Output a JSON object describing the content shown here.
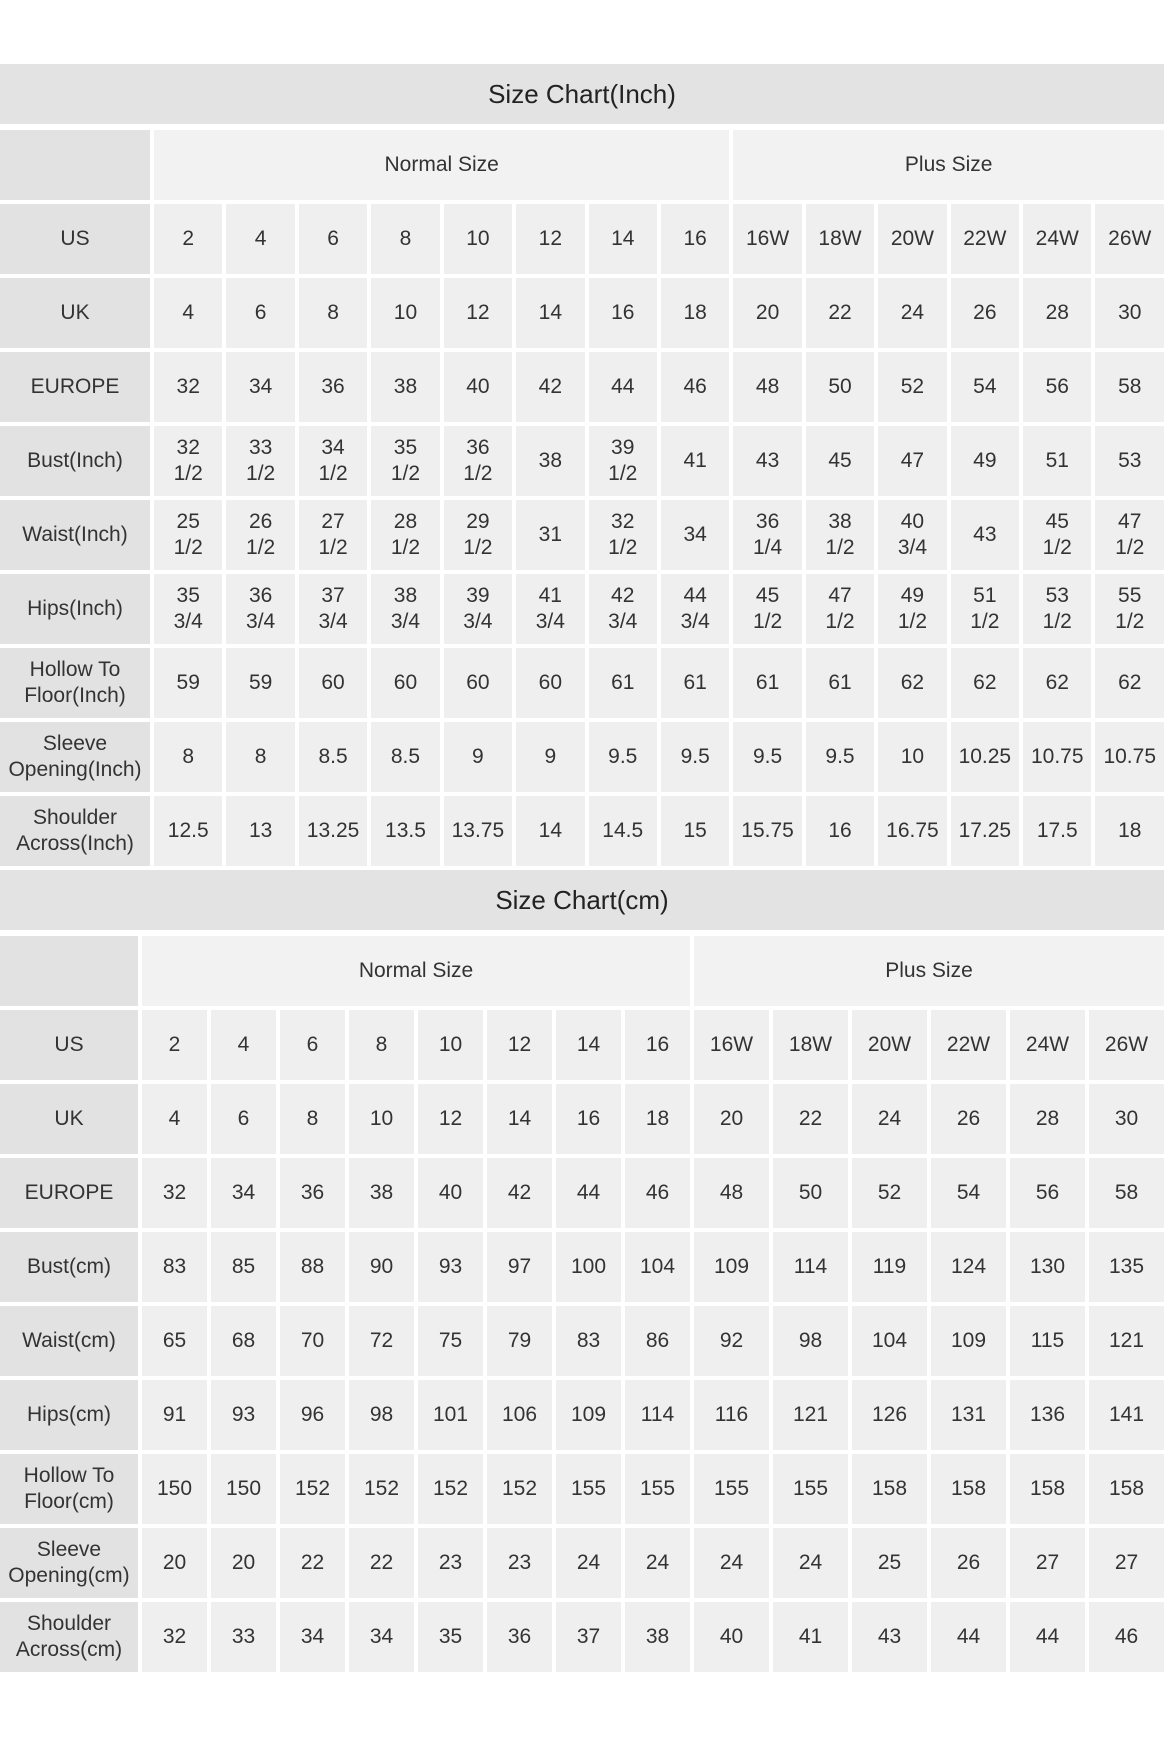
{
  "tables": [
    {
      "title": "Size Chart(Inch)",
      "groups": [
        "Normal Size",
        "Plus Size"
      ],
      "rows": [
        [
          "US",
          "2",
          "4",
          "6",
          "8",
          "10",
          "12",
          "14",
          "16",
          "16W",
          "18W",
          "20W",
          "22W",
          "24W",
          "26W"
        ],
        [
          "UK",
          "4",
          "6",
          "8",
          "10",
          "12",
          "14",
          "16",
          "18",
          "20",
          "22",
          "24",
          "26",
          "28",
          "30"
        ],
        [
          "EUROPE",
          "32",
          "34",
          "36",
          "38",
          "40",
          "42",
          "44",
          "46",
          "48",
          "50",
          "52",
          "54",
          "56",
          "58"
        ],
        [
          "Bust(Inch)",
          "32 1/2",
          "33 1/2",
          "34 1/2",
          "35 1/2",
          "36 1/2",
          "38",
          "39 1/2",
          "41",
          "43",
          "45",
          "47",
          "49",
          "51",
          "53"
        ],
        [
          "Waist(Inch)",
          "25 1/2",
          "26 1/2",
          "27 1/2",
          "28 1/2",
          "29 1/2",
          "31",
          "32 1/2",
          "34",
          "36 1/4",
          "38 1/2",
          "40 3/4",
          "43",
          "45 1/2",
          "47 1/2"
        ],
        [
          "Hips(Inch)",
          "35 3/4",
          "36 3/4",
          "37 3/4",
          "38 3/4",
          "39 3/4",
          "41 3/4",
          "42 3/4",
          "44 3/4",
          "45 1/2",
          "47 1/2",
          "49 1/2",
          "51 1/2",
          "53 1/2",
          "55 1/2"
        ],
        [
          "Hollow To Floor(Inch)",
          "59",
          "59",
          "60",
          "60",
          "60",
          "60",
          "61",
          "61",
          "61",
          "61",
          "62",
          "62",
          "62",
          "62"
        ],
        [
          "Sleeve Opening(Inch)",
          "8",
          "8",
          "8.5",
          "8.5",
          "9",
          "9",
          "9.5",
          "9.5",
          "9.5",
          "9.5",
          "10",
          "10.25",
          "10.75",
          "10.75"
        ],
        [
          "Shoulder Across(Inch)",
          "12.5",
          "13",
          "13.25",
          "13.5",
          "13.75",
          "14",
          "14.5",
          "15",
          "15.75",
          "16",
          "16.75",
          "17.25",
          "17.5",
          "18"
        ]
      ]
    },
    {
      "title": "Size Chart(cm)",
      "groups": [
        "Normal Size",
        "Plus Size"
      ],
      "rows": [
        [
          "US",
          "2",
          "4",
          "6",
          "8",
          "10",
          "12",
          "14",
          "16",
          "16W",
          "18W",
          "20W",
          "22W",
          "24W",
          "26W"
        ],
        [
          "UK",
          "4",
          "6",
          "8",
          "10",
          "12",
          "14",
          "16",
          "18",
          "20",
          "22",
          "24",
          "26",
          "28",
          "30"
        ],
        [
          "EUROPE",
          "32",
          "34",
          "36",
          "38",
          "40",
          "42",
          "44",
          "46",
          "48",
          "50",
          "52",
          "54",
          "56",
          "58"
        ],
        [
          "Bust(cm)",
          "83",
          "85",
          "88",
          "90",
          "93",
          "97",
          "100",
          "104",
          "109",
          "114",
          "119",
          "124",
          "130",
          "135"
        ],
        [
          "Waist(cm)",
          "65",
          "68",
          "70",
          "72",
          "75",
          "79",
          "83",
          "86",
          "92",
          "98",
          "104",
          "109",
          "115",
          "121"
        ],
        [
          "Hips(cm)",
          "91",
          "93",
          "96",
          "98",
          "101",
          "106",
          "109",
          "114",
          "116",
          "121",
          "126",
          "131",
          "136",
          "141"
        ],
        [
          "Hollow To Floor(cm)",
          "150",
          "150",
          "152",
          "152",
          "152",
          "152",
          "155",
          "155",
          "155",
          "155",
          "158",
          "158",
          "158",
          "158"
        ],
        [
          "Sleeve Opening(cm)",
          "20",
          "20",
          "22",
          "22",
          "23",
          "23",
          "24",
          "24",
          "24",
          "24",
          "25",
          "26",
          "27",
          "27"
        ],
        [
          "Shoulder Across(cm)",
          "32",
          "33",
          "34",
          "34",
          "35",
          "36",
          "37",
          "38",
          "40",
          "41",
          "43",
          "44",
          "44",
          "46"
        ]
      ]
    }
  ]
}
